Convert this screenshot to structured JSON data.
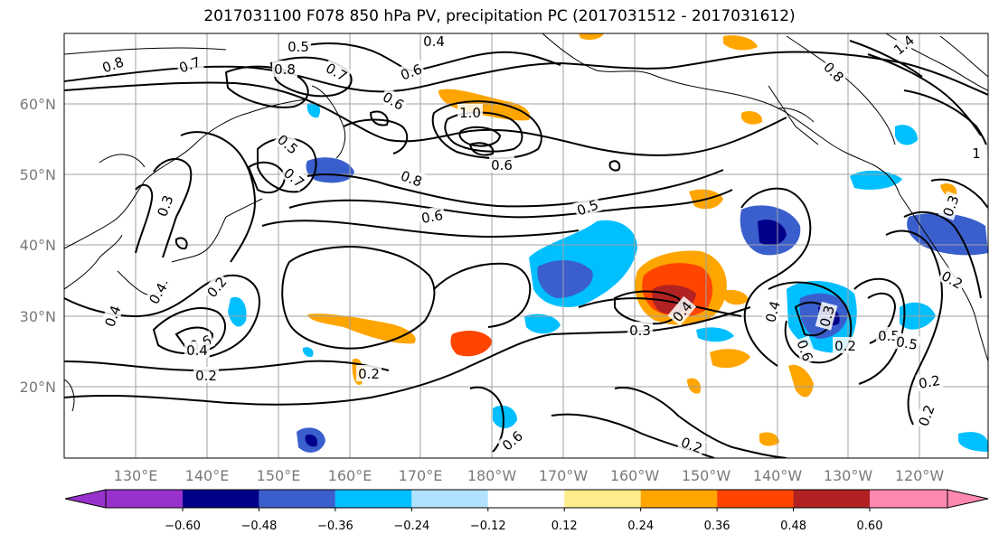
{
  "title": "2017031100 F078 850 hPa PV, precipitation PC (2017031512 - 2017031612)",
  "latitude_labels": [
    "60°N",
    "50°N",
    "40°N",
    "30°N",
    "20°N"
  ],
  "longitude_labels": [
    "130°E",
    "140°E",
    "150°E",
    "160°E",
    "170°E",
    "180°W",
    "170°W",
    "160°W",
    "150°W",
    "140°W",
    "130°W",
    "120°W"
  ],
  "contour_labels": [
    "0.5",
    "0.4",
    "0.8",
    "0.7",
    "0.7",
    "0.8",
    "0.6",
    "1.0",
    "0.6",
    "0.5",
    "0.6",
    "0.7",
    "0.8",
    "0.3",
    "0.6",
    "0.5",
    "0.4",
    "0.2",
    "0.4",
    "0.6",
    "0.4",
    "0.2",
    "0.2",
    "0.3",
    "0.4",
    "0.4",
    "0.3",
    "0.2",
    "0.5",
    "0.5",
    "0.6",
    "0.2",
    "0.2",
    "0.2",
    "0.6",
    "1.4",
    "0.8",
    "1",
    "0.3",
    "0.2"
  ],
  "colorbar": {
    "tick_labels": [
      "−0.60",
      "−0.48",
      "−0.36",
      "−0.24",
      "−0.12",
      "0.12",
      "0.24",
      "0.36",
      "0.48",
      "0.60"
    ],
    "levels": [
      -0.6,
      -0.48,
      -0.36,
      -0.24,
      -0.12,
      0.12,
      0.24,
      0.36,
      0.48,
      0.6
    ],
    "colors": [
      "#9932cc",
      "#00008b",
      "#3a5fcd",
      "#00bfff",
      "#b0e2ff",
      "#ffffff",
      "#ffec8b",
      "#ffa500",
      "#ff4500",
      "#b22222",
      "#ff88b0"
    ]
  }
}
